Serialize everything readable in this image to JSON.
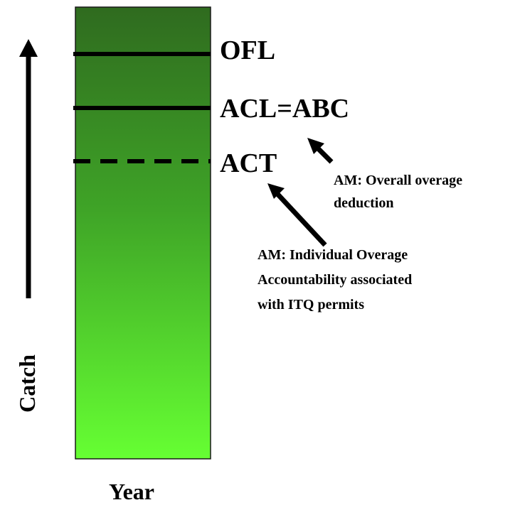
{
  "diagram": {
    "levels": {
      "ofl": "OFL",
      "acl_abc": "ACL=ABC",
      "act": "ACT"
    },
    "annotations": {
      "overall": [
        "AM: Overall overage",
        "deduction"
      ],
      "individual": [
        "AM: Individual Overage",
        "Accountability associated",
        "with ITQ permits"
      ]
    },
    "axes": {
      "x_label": "Year",
      "y_label": "Catch"
    },
    "colors": {
      "bar_top": "#2f6b1f",
      "bar_bottom": "#66ff33",
      "lines": "#000000"
    }
  }
}
